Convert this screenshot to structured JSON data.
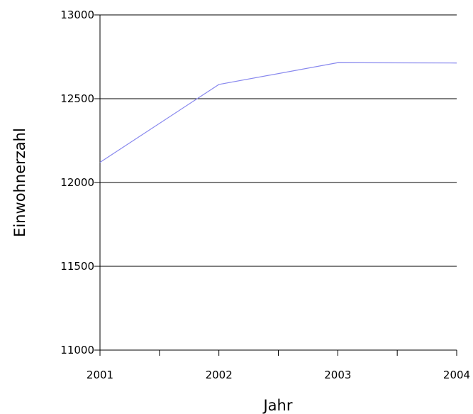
{
  "chart_data": {
    "type": "line",
    "title": "",
    "xlabel": "Jahr",
    "ylabel": "Einwohnerzahl",
    "x": [
      2001,
      2002,
      2003,
      2004
    ],
    "xlim": [
      2001,
      2004
    ],
    "ylim": [
      11000,
      13000
    ],
    "yticks": [
      11000,
      11500,
      12000,
      12500,
      13000
    ],
    "xtick_labels": [
      "2001",
      "2002",
      "2003",
      "2004"
    ],
    "ytick_labels": [
      "11000",
      "11500",
      "12000",
      "12500",
      "13000"
    ],
    "grid": "horizontal",
    "legend": "none",
    "series": [
      {
        "values": [
          12120,
          12585,
          12715,
          12713
        ],
        "color": "#8888ee"
      }
    ]
  }
}
